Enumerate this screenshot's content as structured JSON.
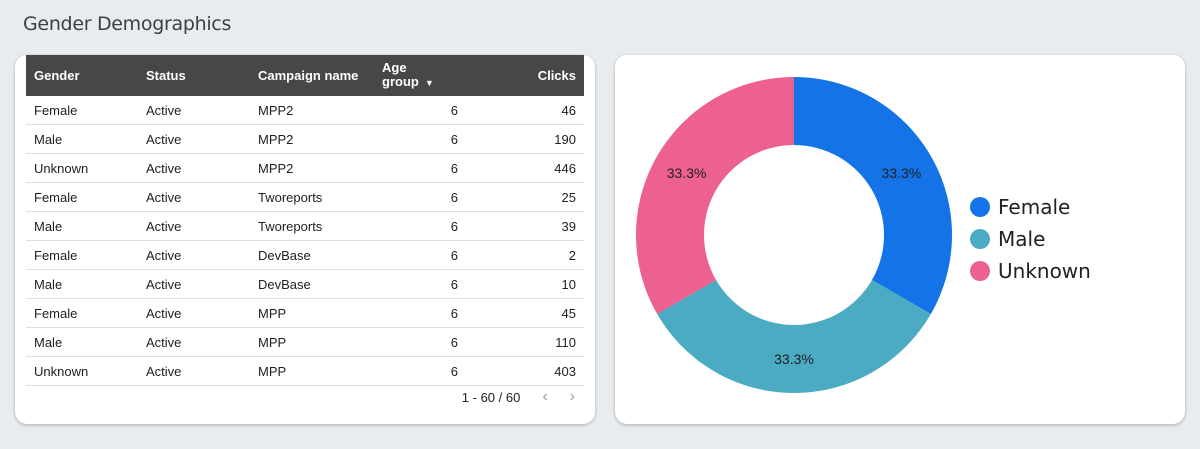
{
  "page": {
    "title": "Gender Demographics"
  },
  "table": {
    "columns": [
      "Gender",
      "Status",
      "Campaign name",
      "Age group",
      "Clicks"
    ],
    "sort_column": "Age group",
    "rows": [
      [
        "Female",
        "Active",
        "MPP2",
        "6",
        "46"
      ],
      [
        "Male",
        "Active",
        "MPP2",
        "6",
        "190"
      ],
      [
        "Unknown",
        "Active",
        "MPP2",
        "6",
        "446"
      ],
      [
        "Female",
        "Active",
        "Tworeports",
        "6",
        "25"
      ],
      [
        "Male",
        "Active",
        "Tworeports",
        "6",
        "39"
      ],
      [
        "Female",
        "Active",
        "DevBase",
        "6",
        "2"
      ],
      [
        "Male",
        "Active",
        "DevBase",
        "6",
        "10"
      ],
      [
        "Female",
        "Active",
        "MPP",
        "6",
        "45"
      ],
      [
        "Male",
        "Active",
        "MPP",
        "6",
        "110"
      ],
      [
        "Unknown",
        "Active",
        "MPP",
        "6",
        "403"
      ]
    ],
    "pagination": "1 - 60 / 60",
    "prev_icon": "chevron-left-icon",
    "next_icon": "chevron-right-icon"
  },
  "chart_data": {
    "type": "pie",
    "donut": true,
    "labels": [
      "Female",
      "Male",
      "Unknown"
    ],
    "values": [
      33.3,
      33.3,
      33.3
    ],
    "data_labels": [
      "33.3%",
      "33.3%",
      "33.3%"
    ],
    "colors": [
      "#1473e6",
      "#4aabc2",
      "#ed6191"
    ],
    "legend_position": "right"
  }
}
